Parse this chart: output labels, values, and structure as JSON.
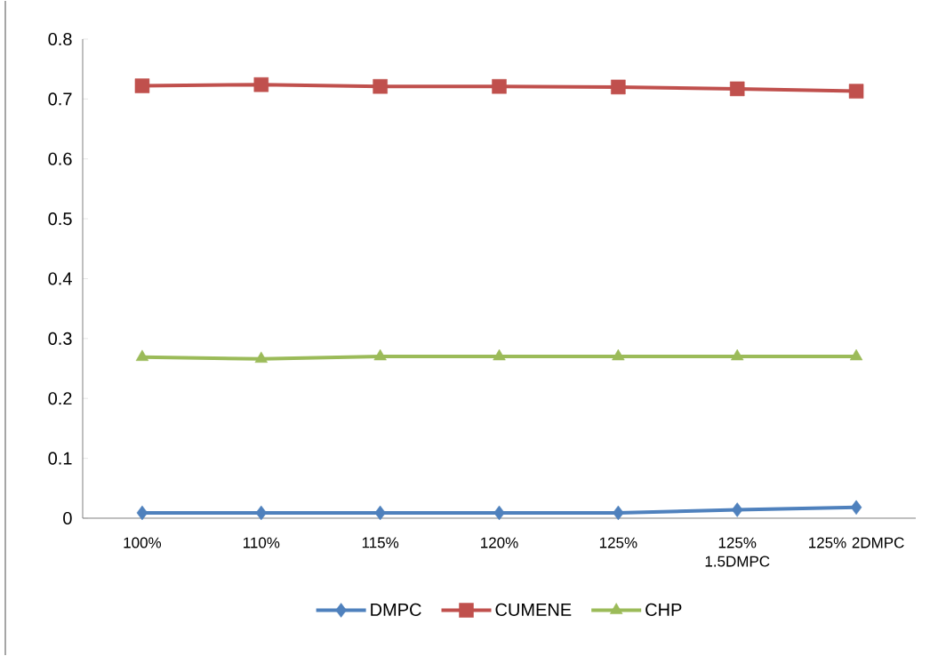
{
  "chart_data": {
    "type": "line",
    "categories": [
      "100%",
      "110%",
      "115%",
      "120%",
      "125%",
      "125% 1.5DMPC",
      "125% 2DMPC"
    ],
    "series": [
      {
        "name": "DMPC",
        "color": "#4f81bd",
        "marker": "diamond",
        "values": [
          0.009,
          0.009,
          0.009,
          0.009,
          0.009,
          0.014,
          0.018
        ]
      },
      {
        "name": "CUMENE",
        "color": "#c0504d",
        "marker": "square",
        "values": [
          0.722,
          0.724,
          0.721,
          0.721,
          0.72,
          0.717,
          0.713
        ]
      },
      {
        "name": "CHP",
        "color": "#9bbb59",
        "marker": "triangle",
        "values": [
          0.269,
          0.266,
          0.27,
          0.27,
          0.27,
          0.27,
          0.27
        ]
      }
    ],
    "ylim": [
      0,
      0.8
    ],
    "yticks": [
      0,
      0.1,
      0.2,
      0.3,
      0.4,
      0.5,
      0.6,
      0.7,
      0.8
    ],
    "grid": false,
    "legend": "bottom",
    "line_style": "solid"
  }
}
